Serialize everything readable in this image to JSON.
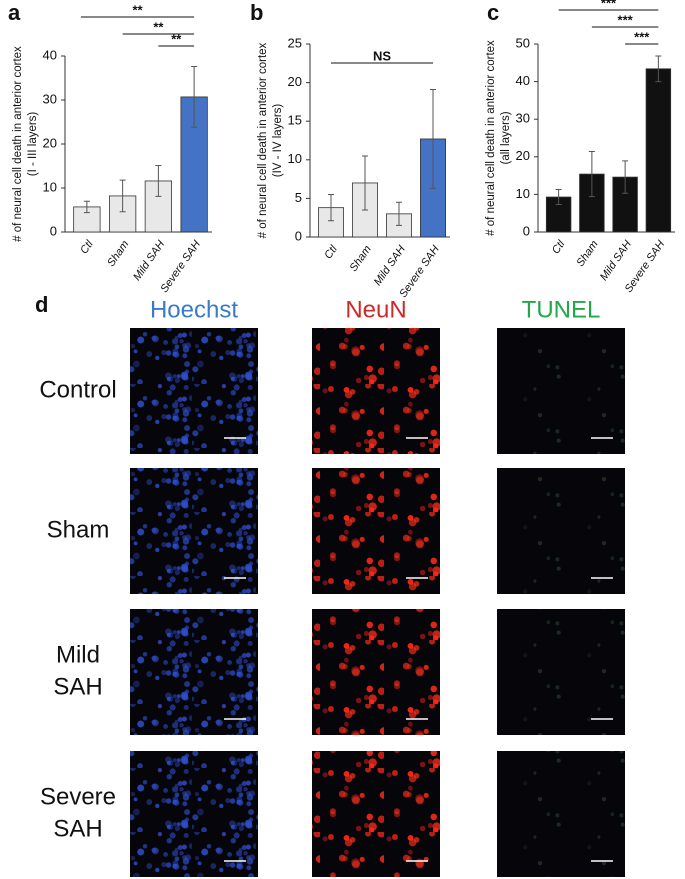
{
  "chart_data": [
    {
      "type": "bar",
      "panel_label": "a",
      "y_label": [
        "# of neural cell death in anterior cortex",
        "(I - III layers)"
      ],
      "categories": [
        "Ctl",
        "Sham",
        "Mild SAH",
        "Severe SAH"
      ],
      "values": [
        5.7,
        8.2,
        11.6,
        30.7
      ],
      "errors": [
        1.3,
        3.6,
        3.5,
        6.9
      ],
      "colors": [
        "#e8e8e8",
        "#e8e8e8",
        "#e8e8e8",
        "#4472c4"
      ],
      "ylim": [
        0,
        40
      ],
      "yticks": [
        0,
        10,
        20,
        30,
        40
      ],
      "grid": false,
      "significance": [
        {
          "label": "**",
          "between": [
            "Ctl",
            "Severe SAH"
          ]
        },
        {
          "label": "**",
          "between": [
            "Sham",
            "Severe SAH"
          ]
        },
        {
          "label": "**",
          "between": [
            "Mild SAH",
            "Severe SAH"
          ]
        }
      ]
    },
    {
      "type": "bar",
      "panel_label": "b",
      "y_label": [
        "# of neural cell death in anterior cortex",
        "(IV - IV layers)"
      ],
      "categories": [
        "Ctl",
        "Sham",
        "Mild SAH",
        "Severe SAH"
      ],
      "values": [
        3.8,
        7.0,
        3.0,
        12.7
      ],
      "errors": [
        1.7,
        3.5,
        1.5,
        6.4
      ],
      "colors": [
        "#e8e8e8",
        "#e8e8e8",
        "#e8e8e8",
        "#4472c4"
      ],
      "ylim": [
        0,
        25
      ],
      "yticks": [
        0,
        5,
        10,
        15,
        20,
        25
      ],
      "grid": false,
      "significance": [
        {
          "label": "NS",
          "between": [
            "Ctl",
            "Severe SAH"
          ]
        }
      ]
    },
    {
      "type": "bar",
      "panel_label": "c",
      "y_label": [
        "# of neural cell death in anterior cortex",
        "(all layers)"
      ],
      "categories": [
        "Ctl",
        "Sham",
        "Mild SAH",
        "Severe SAH"
      ],
      "values": [
        9.3,
        15.4,
        14.6,
        43.4
      ],
      "errors": [
        2.0,
        6.0,
        4.3,
        3.4
      ],
      "colors": [
        "#111111",
        "#111111",
        "#111111",
        "#111111"
      ],
      "ylim": [
        0,
        50
      ],
      "yticks": [
        0,
        10,
        20,
        30,
        40,
        50
      ],
      "grid": false,
      "significance": [
        {
          "label": "***",
          "between": [
            "Ctl",
            "Severe SAH"
          ]
        },
        {
          "label": "***",
          "between": [
            "Sham",
            "Severe SAH"
          ]
        },
        {
          "label": "***",
          "between": [
            "Mild SAH",
            "Severe SAH"
          ]
        }
      ]
    }
  ],
  "panel_d": {
    "panel_label": "d",
    "columns": [
      {
        "name": "Hoechst",
        "color": "#3a7bc8"
      },
      {
        "name": "NeuN",
        "color": "#cc2a2a"
      },
      {
        "name": "TUNEL",
        "color": "#22a84a"
      }
    ],
    "rows": [
      [
        "Control"
      ],
      [
        "Sham"
      ],
      [
        "Mild",
        "SAH"
      ],
      [
        "Severe",
        "SAH"
      ]
    ]
  }
}
